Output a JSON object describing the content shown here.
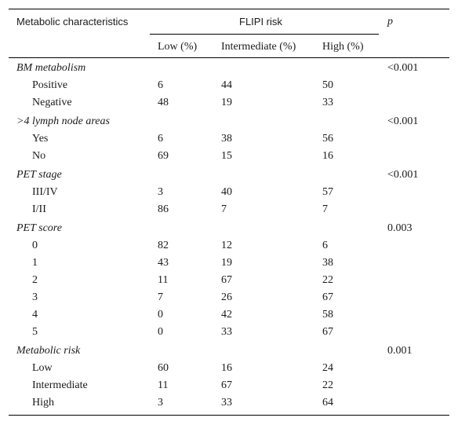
{
  "header": {
    "col0": "Metabolic characteristics",
    "group": "FLIPI risk",
    "p": "p",
    "low": "Low (%)",
    "intermediate": "Intermediate (%)",
    "high": "High (%)"
  },
  "rows": [
    {
      "type": "section",
      "label": "BM metabolism",
      "p": "<0.001"
    },
    {
      "type": "data",
      "label": "Positive",
      "low": "6",
      "intermediate": "44",
      "high": "50"
    },
    {
      "type": "data",
      "label": "Negative",
      "low": "48",
      "intermediate": "19",
      "high": "33"
    },
    {
      "type": "section",
      "label": ">4 lymph node areas",
      "p": "<0.001"
    },
    {
      "type": "data",
      "label": "Yes",
      "low": "6",
      "intermediate": "38",
      "high": "56"
    },
    {
      "type": "data",
      "label": "No",
      "low": "69",
      "intermediate": "15",
      "high": "16"
    },
    {
      "type": "section",
      "label": "PET stage",
      "p": "<0.001"
    },
    {
      "type": "data",
      "label": "III/IV",
      "low": "3",
      "intermediate": "40",
      "high": "57"
    },
    {
      "type": "data",
      "label": "I/II",
      "low": "86",
      "intermediate": "7",
      "high": "7"
    },
    {
      "type": "section",
      "label": "PET score",
      "p": "0.003"
    },
    {
      "type": "data",
      "label": "0",
      "low": "82",
      "intermediate": "12",
      "high": "6"
    },
    {
      "type": "data",
      "label": "1",
      "low": "43",
      "intermediate": "19",
      "high": "38"
    },
    {
      "type": "data",
      "label": "2",
      "low": "11",
      "intermediate": "67",
      "high": "22"
    },
    {
      "type": "data",
      "label": "3",
      "low": "7",
      "intermediate": "26",
      "high": "67"
    },
    {
      "type": "data",
      "label": "4",
      "low": "0",
      "intermediate": "42",
      "high": "58"
    },
    {
      "type": "data",
      "label": "5",
      "low": "0",
      "intermediate": "33",
      "high": "67"
    },
    {
      "type": "section",
      "label": "Metabolic risk",
      "p": "0.001"
    },
    {
      "type": "data",
      "label": "Low",
      "low": "60",
      "intermediate": "16",
      "high": "24"
    },
    {
      "type": "data",
      "label": "Intermediate",
      "low": "11",
      "intermediate": "67",
      "high": "22"
    },
    {
      "type": "data",
      "label": "High",
      "low": "3",
      "intermediate": "33",
      "high": "64"
    }
  ]
}
